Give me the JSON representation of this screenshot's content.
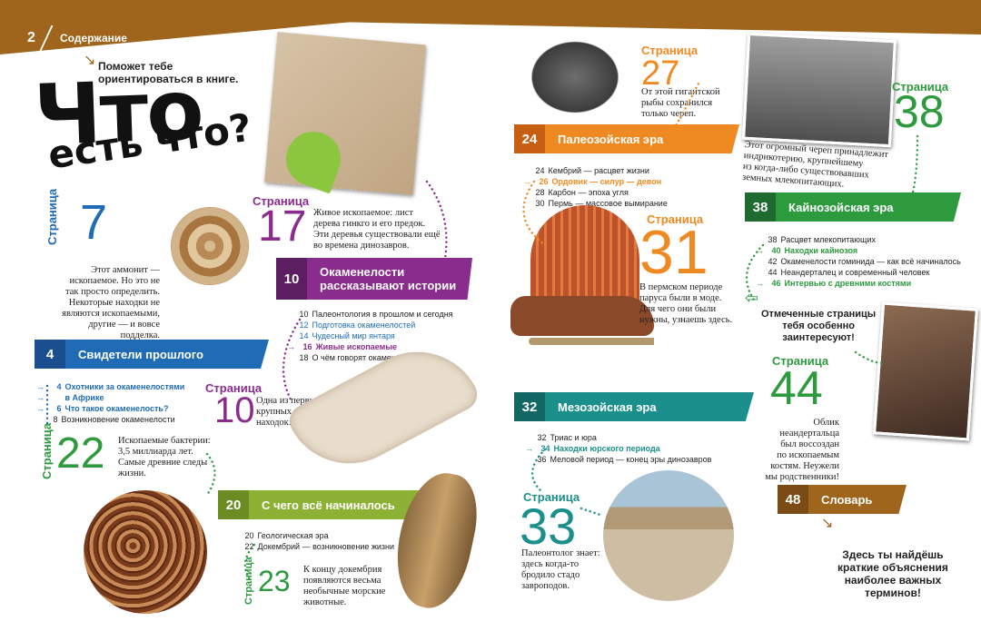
{
  "header": {
    "page_number": "2",
    "section": "Содержание"
  },
  "colors": {
    "band": "#a0651c",
    "blue": "#1f6bb5",
    "purple": "#8a2c8e",
    "green": "#2e9a3e",
    "olive": "#8db135",
    "teal": "#1a8f8c",
    "orange": "#ef8a22",
    "darkgreen": "#2e8b3e",
    "brown": "#a0651c"
  },
  "intro": {
    "line1": "Поможет тебе",
    "line2": "ориентироваться в книге."
  },
  "title": {
    "line1": "Что",
    "line2": "есть что?"
  },
  "page_word": "Страница",
  "features": {
    "p7": {
      "num": "7",
      "caption": [
        "Этот аммонит —",
        "ископаемое. Но это не",
        "так просто определить.",
        "Некоторые находки не",
        "являются ископаемыми,",
        "другие — и вовсе",
        "подделка."
      ]
    },
    "p17": {
      "num": "17",
      "caption": [
        "Живое ископаемое: лист",
        "дерева гинкго и его предок.",
        "Эти деревья существовали ещё",
        "во времена динозавров."
      ]
    },
    "p10": {
      "num": "10",
      "caption": [
        "Одна из первых",
        "крупных ископаемых",
        "находок: ихтиозавр."
      ]
    },
    "p22": {
      "num": "22",
      "caption": [
        "Ископаемые бактерии:",
        "3,5 миллиарда лет.",
        "Самые древние следы",
        "жизни."
      ]
    },
    "p23": {
      "num": "23",
      "caption": [
        "К концу докембрия",
        "появляются весьма",
        "необычные морские",
        "животные."
      ]
    },
    "p27": {
      "num": "27",
      "caption": [
        "От этой гигантской",
        "рыбы сохранился",
        "только череп."
      ]
    },
    "p31": {
      "num": "31",
      "caption": [
        "В пермском периоде",
        "паруса были в моде.",
        "Для чего они были",
        "нужны, узнаешь здесь."
      ]
    },
    "p33": {
      "num": "33",
      "caption": [
        "Палеонтолог знает:",
        "здесь когда-то",
        "бродило стадо",
        "завроподов."
      ]
    },
    "p38": {
      "num": "38",
      "caption": [
        "Этот огромный череп принадлежит",
        "индрикотерию, крупнейшему",
        "из когда-либо существовавших",
        "земных млекопитающих."
      ]
    },
    "p44": {
      "num": "44",
      "caption": [
        "Облик неандертальца",
        "был воссоздан",
        "по ископаемым",
        "костям. Неужели",
        "мы родственники!"
      ]
    }
  },
  "sections": {
    "s4": {
      "num": "4",
      "title": "Свидетели прошлого",
      "items": [
        {
          "n": "4",
          "t": "Охотники за окаменелостями",
          "hl": true
        },
        {
          "n": "",
          "t": "в Африке",
          "hl": true
        },
        {
          "n": "6",
          "t": "Что такое окаменелость?",
          "hl": true
        },
        {
          "n": "8",
          "t": "Возникновение окаменелости",
          "hl": false
        }
      ]
    },
    "s10": {
      "num": "10",
      "title1": "Окаменелости",
      "title2": "рассказывают истории",
      "items": [
        {
          "n": "10",
          "t": "Палеонтология в прошлом и сегодня",
          "c": "#222"
        },
        {
          "n": "12",
          "t": "Подготовка окаменелостей",
          "c": "#1f6bb5"
        },
        {
          "n": "14",
          "t": "Чудесный мир янтаря",
          "c": "#1f6bb5"
        },
        {
          "n": "16",
          "t": "Живые ископаемые",
          "c": "#8a2c8e",
          "hl": true
        },
        {
          "n": "18",
          "t": "О чём говорят окаменелости",
          "c": "#222"
        }
      ]
    },
    "s20": {
      "num": "20",
      "title": "С чего всё начиналось",
      "items": [
        {
          "n": "20",
          "t": "Геологическая эра"
        },
        {
          "n": "22",
          "t": "Докембрий — возникновение жизни"
        }
      ]
    },
    "s24": {
      "num": "24",
      "title": "Палеозойская эра",
      "items": [
        {
          "n": "24",
          "t": "Кембрий — расцвет жизни",
          "c": "#222"
        },
        {
          "n": "26",
          "t": "Ордовик — силур — девон",
          "c": "#ef8a22",
          "hl": true
        },
        {
          "n": "28",
          "t": "Карбон — эпоха угля",
          "c": "#222"
        },
        {
          "n": "30",
          "t": "Пермь — массовое вымирание",
          "c": "#222"
        }
      ]
    },
    "s32": {
      "num": "32",
      "title": "Мезозойская эра",
      "items": [
        {
          "n": "32",
          "t": "Триас и юра",
          "c": "#222"
        },
        {
          "n": "34",
          "t": "Находки юрского периода",
          "c": "#1a8f8c",
          "hl": true
        },
        {
          "n": "36",
          "t": "Меловой период — конец эры динозавров",
          "c": "#222"
        }
      ]
    },
    "s38": {
      "num": "38",
      "title": "Кайнозойская эра",
      "items": [
        {
          "n": "38",
          "t": "Расцвет млекопитающих",
          "c": "#222"
        },
        {
          "n": "40",
          "t": "Находки кайнозоя",
          "c": "#2e9a3e",
          "hl": true
        },
        {
          "n": "42",
          "t": "Окаменелости гоминида — как всё начиналось",
          "c": "#222"
        },
        {
          "n": "44",
          "t": "Неандерталец и современный человек",
          "c": "#222"
        },
        {
          "n": "46",
          "t": "Интервью с древними костями",
          "c": "#2e9a3e",
          "hl": true
        }
      ]
    },
    "s48": {
      "num": "48",
      "title": "Словарь"
    }
  },
  "notes": {
    "marked": [
      "Отмеченные страницы",
      "тебя особенно",
      "заинтересуют!"
    ],
    "glossary": [
      "Здесь ты найдёшь",
      "краткие объяснения",
      "наиболее важных",
      "терминов!"
    ]
  }
}
